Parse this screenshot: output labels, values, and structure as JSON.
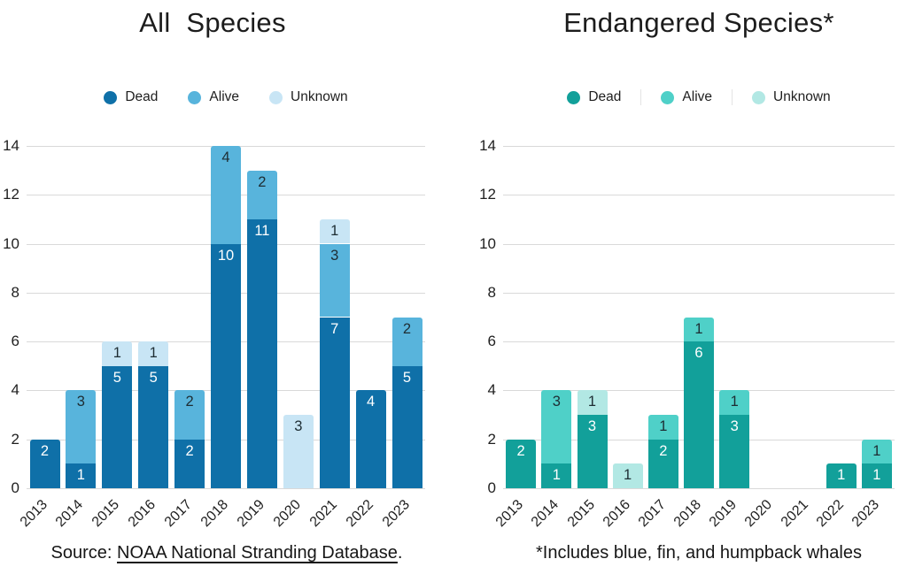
{
  "chart_data": [
    {
      "type": "bar",
      "stacked": true,
      "title": "All  Species",
      "categories": [
        "2013",
        "2014",
        "2015",
        "2016",
        "2017",
        "2018",
        "2019",
        "2020",
        "2021",
        "2022",
        "2023"
      ],
      "series": [
        {
          "name": "Dead",
          "color": "#0f70a8",
          "label_color": "#ffffff",
          "values": [
            2,
            1,
            5,
            5,
            2,
            10,
            11,
            0,
            7,
            4,
            5
          ]
        },
        {
          "name": "Alive",
          "color": "#58b4dc",
          "label_color": "#1e2d33",
          "values": [
            0,
            3,
            0,
            0,
            2,
            4,
            2,
            0,
            3,
            0,
            2
          ]
        },
        {
          "name": "Unknown",
          "color": "#c8e5f5",
          "label_color": "#1e2d33",
          "values": [
            0,
            0,
            1,
            1,
            0,
            0,
            0,
            3,
            1,
            0,
            0
          ]
        }
      ],
      "ylim": [
        0,
        14
      ],
      "yticks": [
        0,
        2,
        4,
        6,
        8,
        10,
        12,
        14
      ],
      "grid": true,
      "legend_position": "top",
      "footnote": {
        "prefix": "Source: ",
        "link": "NOAA National Stranding Database",
        "suffix": "."
      }
    },
    {
      "type": "bar",
      "stacked": true,
      "title": "Endangered Species*",
      "categories": [
        "2013",
        "2014",
        "2015",
        "2016",
        "2017",
        "2018",
        "2019",
        "2020",
        "2021",
        "2022",
        "2023"
      ],
      "series": [
        {
          "name": "Dead",
          "color": "#12a09a",
          "label_color": "#ffffff",
          "values": [
            2,
            1,
            3,
            0,
            2,
            6,
            3,
            0,
            0,
            1,
            1
          ]
        },
        {
          "name": "Alive",
          "color": "#4fd0c8",
          "label_color": "#1e2d33",
          "values": [
            0,
            3,
            0,
            0,
            1,
            1,
            1,
            0,
            0,
            0,
            1
          ]
        },
        {
          "name": "Unknown",
          "color": "#b2e8e4",
          "label_color": "#1e2d33",
          "values": [
            0,
            0,
            1,
            1,
            0,
            0,
            0,
            0,
            0,
            0,
            0
          ]
        }
      ],
      "ylim": [
        0,
        14
      ],
      "yticks": [
        0,
        2,
        4,
        6,
        8,
        10,
        12,
        14
      ],
      "grid": true,
      "legend_position": "top",
      "footnote": {
        "text": "*Includes blue, fin, and humpback whales"
      }
    }
  ]
}
